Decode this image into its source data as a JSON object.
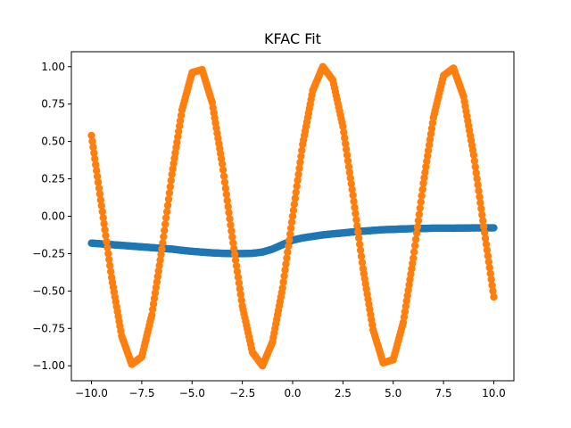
{
  "chart_data": {
    "type": "scatter",
    "title": "KFAC Fit",
    "xlabel": "",
    "ylabel": "",
    "xlim": [
      -11.0,
      11.0
    ],
    "ylim": [
      -1.1,
      1.1
    ],
    "grid": false,
    "legend": "none",
    "x_ticks": [
      -10.0,
      -7.5,
      -5.0,
      -2.5,
      0.0,
      2.5,
      5.0,
      7.5,
      10.0
    ],
    "x_tick_labels": [
      "−10.0",
      "−7.5",
      "−5.0",
      "−2.5",
      "0.0",
      "2.5",
      "5.0",
      "7.5",
      "10.0"
    ],
    "y_ticks": [
      -1.0,
      -0.75,
      -0.5,
      -0.25,
      0.0,
      0.25,
      0.5,
      0.75,
      1.0
    ],
    "y_tick_labels": [
      "−1.00",
      "−0.75",
      "−0.50",
      "−0.25",
      "0.00",
      "0.25",
      "0.50",
      "0.75",
      "1.00"
    ],
    "series": [
      {
        "color": "#1f77b4",
        "x": [
          -10,
          -9.5,
          -9,
          -8.5,
          -8,
          -7.5,
          -7,
          -6.5,
          -6,
          -5.5,
          -5,
          -4.5,
          -4,
          -3.5,
          -3,
          -2.5,
          -2,
          -1.5,
          -1,
          -0.5,
          0,
          0.5,
          1,
          1.5,
          2,
          2.5,
          3,
          3.5,
          4,
          4.5,
          5,
          5.5,
          6,
          6.5,
          7,
          7.5,
          8,
          8.5,
          9,
          9.5,
          10
        ],
        "y": [
          -0.18,
          -0.185,
          -0.19,
          -0.195,
          -0.2,
          -0.205,
          -0.21,
          -0.215,
          -0.22,
          -0.228,
          -0.235,
          -0.24,
          -0.245,
          -0.248,
          -0.25,
          -0.25,
          -0.248,
          -0.24,
          -0.22,
          -0.19,
          -0.16,
          -0.145,
          -0.135,
          -0.125,
          -0.118,
          -0.112,
          -0.105,
          -0.1,
          -0.095,
          -0.09,
          -0.088,
          -0.085,
          -0.083,
          -0.082,
          -0.08,
          -0.08,
          -0.08,
          -0.079,
          -0.078,
          -0.078,
          -0.078
        ]
      },
      {
        "color": "#ff7f0e",
        "x": [
          -10,
          -9.5,
          -9,
          -8.5,
          -8,
          -7.5,
          -7,
          -6.5,
          -6,
          -5.5,
          -5,
          -4.5,
          -4,
          -3.5,
          -3,
          -2.5,
          -2,
          -1.5,
          -1,
          -0.5,
          0,
          0.5,
          1,
          1.5,
          2,
          2.5,
          3,
          3.5,
          4,
          4.5,
          5,
          5.5,
          6,
          6.5,
          7,
          7.5,
          8,
          8.5,
          9,
          9.5,
          10
        ],
        "y": [
          0.54,
          0.07,
          -0.41,
          -0.8,
          -0.99,
          -0.94,
          -0.66,
          -0.22,
          0.28,
          0.71,
          0.96,
          0.98,
          0.76,
          0.35,
          -0.14,
          -0.6,
          -0.91,
          -1.0,
          -0.84,
          -0.48,
          0.0,
          0.48,
          0.84,
          1.0,
          0.91,
          0.6,
          0.14,
          -0.35,
          -0.76,
          -0.98,
          -0.96,
          -0.71,
          -0.28,
          0.22,
          0.66,
          0.94,
          0.99,
          0.8,
          0.41,
          -0.07,
          -0.54
        ]
      }
    ]
  }
}
